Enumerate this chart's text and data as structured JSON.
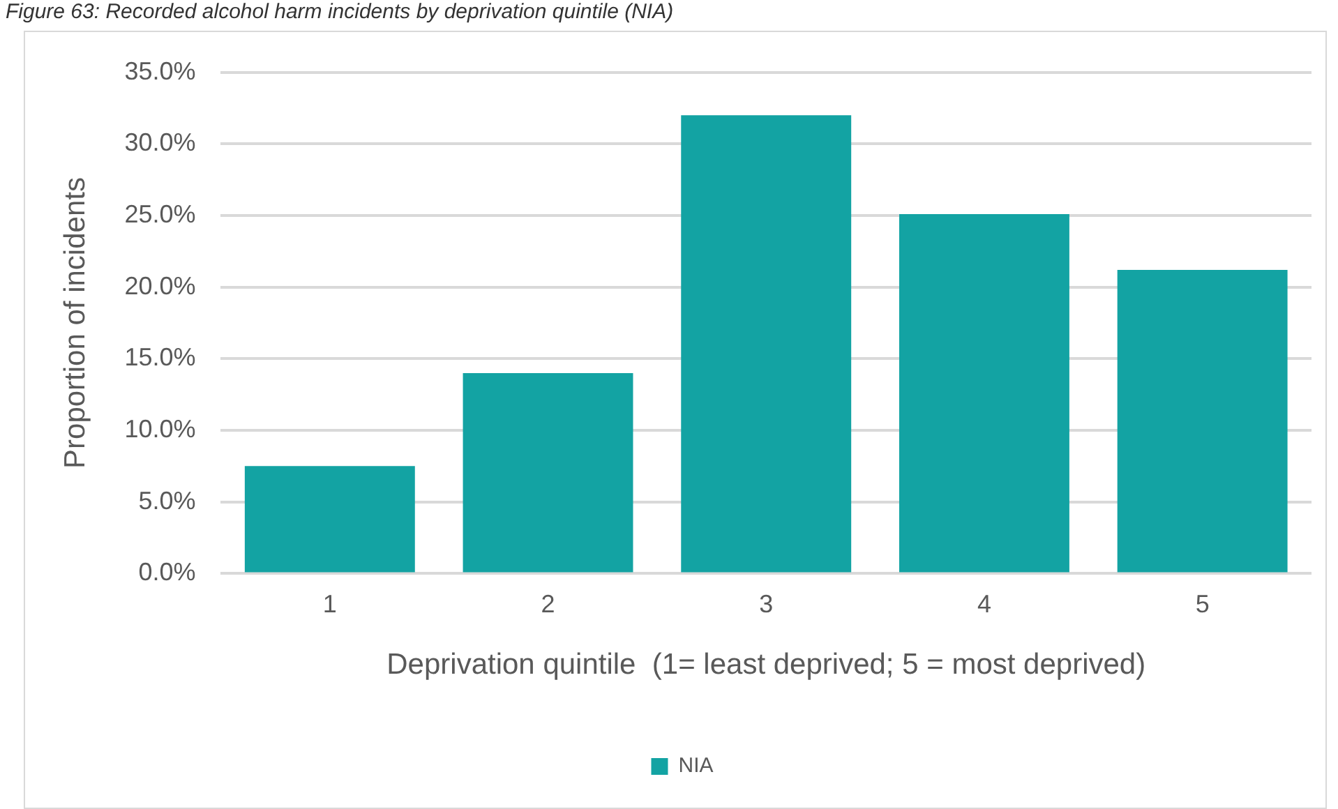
{
  "chart_data": {
    "type": "bar",
    "title": "Figure 63: Recorded alcohol harm incidents by deprivation quintile (NIA)",
    "categories": [
      "1",
      "2",
      "3",
      "4",
      "5"
    ],
    "series": [
      {
        "name": "NIA",
        "color": "#13a3a3",
        "values": [
          7.5,
          14.0,
          32.0,
          25.1,
          21.2
        ]
      }
    ],
    "xlabel": "Deprivation quintile  (1= least deprived; 5 = most deprived)",
    "ylabel": "Proportion of incidents",
    "ylim": [
      0,
      35
    ],
    "yticks": [
      {
        "value": 0,
        "label": "0.0%"
      },
      {
        "value": 5,
        "label": "5.0%"
      },
      {
        "value": 10,
        "label": "10.0%"
      },
      {
        "value": 15,
        "label": "15.0%"
      },
      {
        "value": 20,
        "label": "20.0%"
      },
      {
        "value": 25,
        "label": "25.0%"
      },
      {
        "value": 30,
        "label": "30.0%"
      },
      {
        "value": 35,
        "label": "35.0%"
      }
    ],
    "grid": "y",
    "legend": "bottom"
  }
}
